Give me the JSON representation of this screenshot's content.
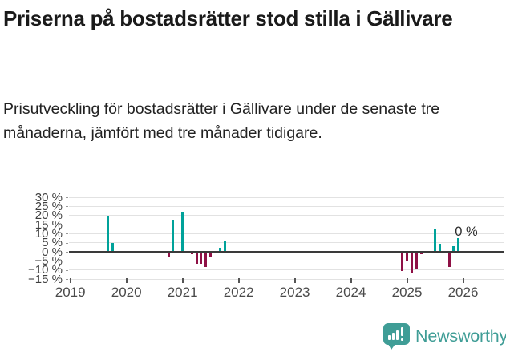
{
  "header": {
    "title": "Priserna på bostadsrätter stod stilla i Gällivare",
    "subtitle": "Prisutveckling för bostadsrätter i Gällivare under de senaste tre månaderna, jämfört med tre månader tidigare."
  },
  "chart_data": {
    "type": "bar",
    "title": "Priserna på bostadsrätter stod stilla i Gällivare",
    "subtitle": "Prisutveckling för bostadsrätter i Gällivare under de senaste tre månaderna, jämfört med tre månader tidigare.",
    "unit": "%",
    "ylim": [
      -15,
      30
    ],
    "grid": true,
    "yticks": [
      30,
      25,
      20,
      15,
      10,
      5,
      0,
      -5,
      -10,
      -15
    ],
    "ytick_labels": [
      "30 %",
      "25 %",
      "20 %",
      "15 %",
      "10 %",
      "5 %",
      "0 %",
      "−5 %",
      "−10 %",
      "−15 %"
    ],
    "xticks": [
      2019,
      2020,
      2021,
      2022,
      2023,
      2024,
      2025,
      2026
    ],
    "points": [
      {
        "date": "2019-09",
        "value": 19.5
      },
      {
        "date": "2019-10",
        "value": 5.0
      },
      {
        "date": "2020-10",
        "value": -2.5
      },
      {
        "date": "2020-11",
        "value": 17.5
      },
      {
        "date": "2021-01",
        "value": 21.5
      },
      {
        "date": "2021-03",
        "value": -1.4
      },
      {
        "date": "2021-04",
        "value": -6.8
      },
      {
        "date": "2021-05",
        "value": -6.8
      },
      {
        "date": "2021-06",
        "value": -8.2
      },
      {
        "date": "2021-07",
        "value": -2.6
      },
      {
        "date": "2021-09",
        "value": 2.0
      },
      {
        "date": "2021-10",
        "value": 5.7
      },
      {
        "date": "2024-12",
        "value": -10.7
      },
      {
        "date": "2025-01",
        "value": -5.0
      },
      {
        "date": "2025-02",
        "value": -11.9
      },
      {
        "date": "2025-03",
        "value": -9.4
      },
      {
        "date": "2025-04",
        "value": -1.3
      },
      {
        "date": "2025-07",
        "value": 12.7
      },
      {
        "date": "2025-08",
        "value": 4.6
      },
      {
        "date": "2025-10",
        "value": -8.2
      },
      {
        "date": "2025-11",
        "value": 3.1
      },
      {
        "date": "2025-12",
        "value": 7.3
      },
      {
        "date": "2026-01",
        "value": 0.0
      }
    ],
    "last_point_label": {
      "text": "0 %",
      "date": "2026-01",
      "value": 0
    },
    "colors": {
      "positive": "#00a29a",
      "negative": "#8e1045",
      "zero_line": "#3a3a3a",
      "grid": "#e2e2e2"
    }
  },
  "footer": {
    "brand": "Newsworthy",
    "brand_color": "#3f9d96"
  }
}
